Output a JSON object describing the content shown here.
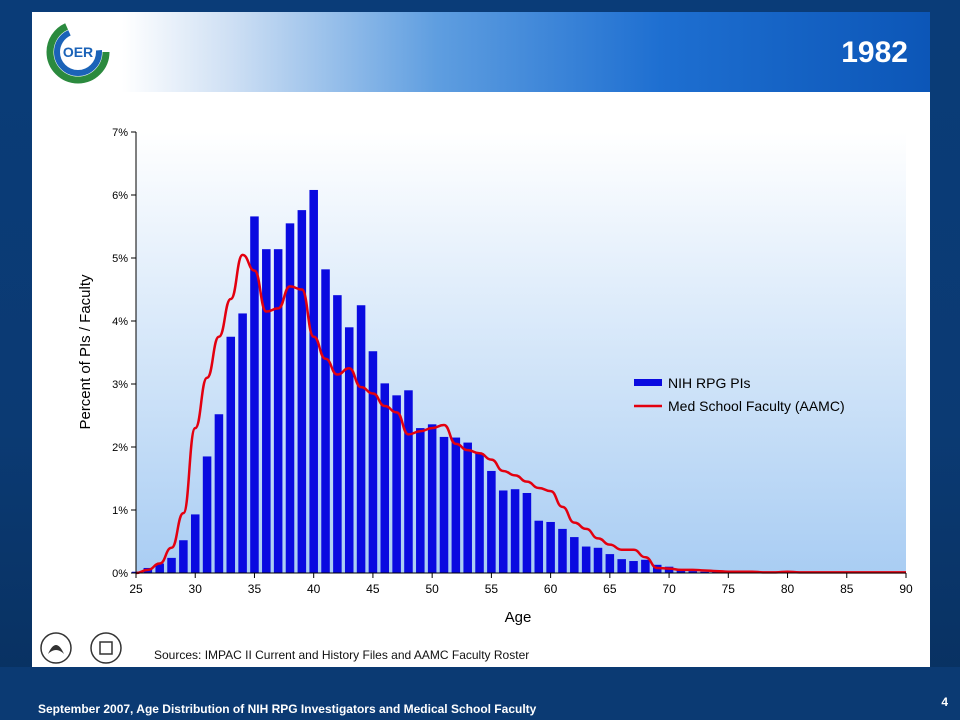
{
  "slide": {
    "title": "1982",
    "logo_text": "OER",
    "sources": "Sources:  IMPAC II Current  and History Files and AAMC Faculty Roster",
    "footer": "September 2007, Age Distribution of NIH RPG Investigators and Medical School Faculty",
    "page_number": "4",
    "colors": {
      "accent": "#1e6fd1",
      "bar": "#0a0ae0",
      "line": "#e3000f",
      "footer": "#0b3a73"
    }
  },
  "chart_data": {
    "type": "bar",
    "title": "",
    "xlabel": "Age",
    "ylabel": "Percent of PIs / Faculty",
    "xlim": [
      25,
      90
    ],
    "ylim": [
      0,
      7
    ],
    "x_ticks": [
      25,
      30,
      35,
      40,
      45,
      50,
      55,
      60,
      65,
      70,
      75,
      80,
      85,
      90
    ],
    "y_ticks": [
      "0%",
      "1%",
      "2%",
      "3%",
      "4%",
      "5%",
      "6%",
      "7%"
    ],
    "legend_position": "right",
    "series": [
      {
        "name": "NIH RPG PIs",
        "type": "bar",
        "x": [
          25,
          26,
          27,
          28,
          29,
          30,
          31,
          32,
          33,
          34,
          35,
          36,
          37,
          38,
          39,
          40,
          41,
          42,
          43,
          44,
          45,
          46,
          47,
          48,
          49,
          50,
          51,
          52,
          53,
          54,
          55,
          56,
          57,
          58,
          59,
          60,
          61,
          62,
          63,
          64,
          65,
          66,
          67,
          68,
          69,
          70,
          71,
          72,
          73,
          74,
          75,
          76,
          77,
          78,
          79,
          80,
          81,
          82,
          83,
          84,
          85,
          86,
          87,
          88,
          89,
          90
        ],
        "values": [
          0.02,
          0.08,
          0.15,
          0.24,
          0.52,
          0.93,
          1.85,
          2.52,
          3.75,
          4.12,
          5.66,
          5.14,
          5.14,
          5.55,
          5.76,
          6.08,
          4.82,
          4.41,
          3.9,
          4.25,
          3.52,
          3.01,
          2.82,
          2.9,
          2.3,
          2.36,
          2.16,
          2.15,
          2.07,
          1.9,
          1.62,
          1.31,
          1.33,
          1.27,
          0.83,
          0.81,
          0.7,
          0.57,
          0.42,
          0.4,
          0.3,
          0.22,
          0.19,
          0.21,
          0.13,
          0.1,
          0.05,
          0.03,
          0.02,
          0.02,
          0.01,
          0.01,
          0.01,
          0.01,
          0.01,
          0.01,
          0.0,
          0.0,
          0.0,
          0.0,
          0.0,
          0.0,
          0.0,
          0.0,
          0.0,
          0.0
        ]
      },
      {
        "name": "Med School Faculty (AAMC)",
        "type": "line",
        "x": [
          25,
          26,
          27,
          28,
          29,
          30,
          31,
          32,
          33,
          34,
          35,
          36,
          37,
          38,
          39,
          40,
          41,
          42,
          43,
          44,
          45,
          46,
          47,
          48,
          49,
          50,
          51,
          52,
          53,
          54,
          55,
          56,
          57,
          58,
          59,
          60,
          61,
          62,
          63,
          64,
          65,
          66,
          67,
          68,
          69,
          70,
          71,
          72,
          73,
          74,
          75,
          76,
          77,
          78,
          79,
          80,
          81,
          82,
          83,
          84,
          85,
          86,
          87,
          88,
          89,
          90
        ],
        "values": [
          0.0,
          0.05,
          0.15,
          0.4,
          0.95,
          2.3,
          3.1,
          3.75,
          4.35,
          5.05,
          4.8,
          4.15,
          4.2,
          4.55,
          4.5,
          3.75,
          3.4,
          3.15,
          3.25,
          2.95,
          2.85,
          2.65,
          2.55,
          2.2,
          2.25,
          2.3,
          2.35,
          2.05,
          1.95,
          1.9,
          1.8,
          1.62,
          1.55,
          1.45,
          1.35,
          1.3,
          1.05,
          0.8,
          0.7,
          0.55,
          0.45,
          0.37,
          0.37,
          0.25,
          0.08,
          0.07,
          0.05,
          0.05,
          0.04,
          0.03,
          0.02,
          0.02,
          0.02,
          0.01,
          0.01,
          0.02,
          0.01,
          0.01,
          0.01,
          0.01,
          0.01,
          0.01,
          0.01,
          0.01,
          0.01,
          0.01
        ]
      }
    ]
  }
}
